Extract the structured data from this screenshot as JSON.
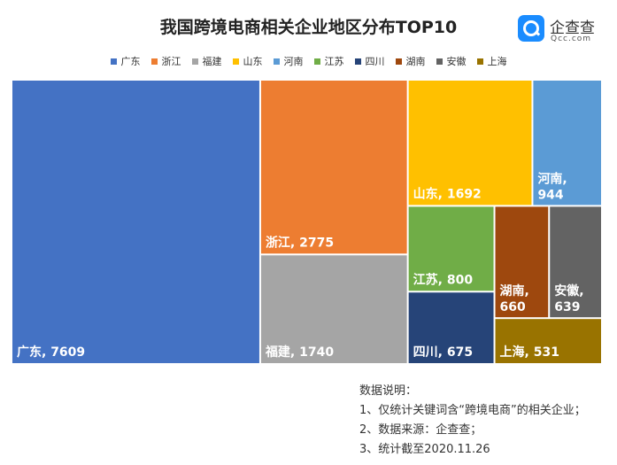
{
  "header": {
    "title": "我国跨境电商相关企业地区分布TOP10",
    "logo_name": "企查查",
    "logo_sub": "Qcc.com"
  },
  "chart_data": {
    "type": "treemap",
    "title": "我国跨境电商相关企业地区分布TOP10",
    "legend_position": "top",
    "items": [
      {
        "name": "广东",
        "value": 7609,
        "color": "#4472c4"
      },
      {
        "name": "浙江",
        "value": 2775,
        "color": "#ed7d31"
      },
      {
        "name": "福建",
        "value": 1740,
        "color": "#a5a5a5"
      },
      {
        "name": "山东",
        "value": 1692,
        "color": "#ffc000"
      },
      {
        "name": "河南",
        "value": 944,
        "color": "#5b9bd5"
      },
      {
        "name": "江苏",
        "value": 800,
        "color": "#70ad47"
      },
      {
        "name": "四川",
        "value": 675,
        "color": "#264478"
      },
      {
        "name": "湖南",
        "value": 660,
        "color": "#9e480e"
      },
      {
        "name": "安徽",
        "value": 639,
        "color": "#636363"
      },
      {
        "name": "上海",
        "value": 531,
        "color": "#997300"
      }
    ]
  },
  "notes": {
    "heading": "数据说明：",
    "lines": [
      "1、仅统计关键词含“跨境电商”的相关企业；",
      "2、数据来源：企查查；",
      "3、统计截至2020.11.26"
    ]
  }
}
